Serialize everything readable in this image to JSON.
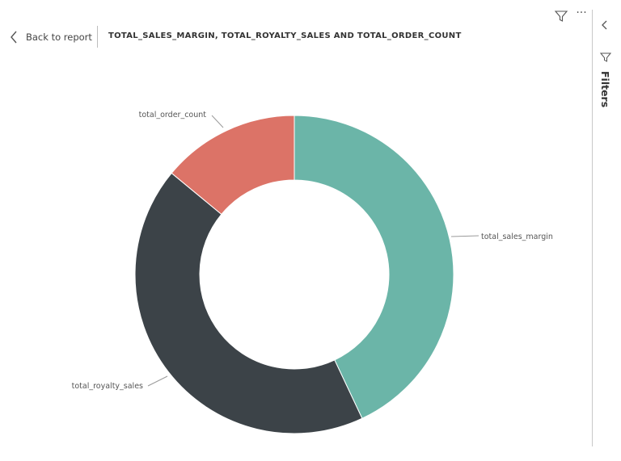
{
  "header": {
    "back_label": "Back to report",
    "title": "TOTAL_SALES_MARGIN, TOTAL_ROYALTY_SALES AND TOTAL_ORDER_COUNT",
    "filter_icon": "funnel-icon",
    "more_icon": "ellipsis-icon"
  },
  "filters_pane": {
    "label": "Filters",
    "collapse_icon": "chevron-left-icon",
    "filter_icon": "funnel-icon"
  },
  "chart_data": {
    "type": "pie",
    "variant": "donut",
    "title": "TOTAL_SALES_MARGIN, TOTAL_ROYALTY_SALES AND TOTAL_ORDER_COUNT",
    "categories": [
      "total_sales_margin",
      "total_royalty_sales",
      "total_order_count"
    ],
    "values": [
      43,
      43,
      14
    ],
    "colors": [
      "#6bb5a8",
      "#3c4348",
      "#dc7367"
    ],
    "start_angle_deg": 0,
    "direction": "clockwise",
    "legend": "none",
    "data_labels": "category-name-outside"
  }
}
